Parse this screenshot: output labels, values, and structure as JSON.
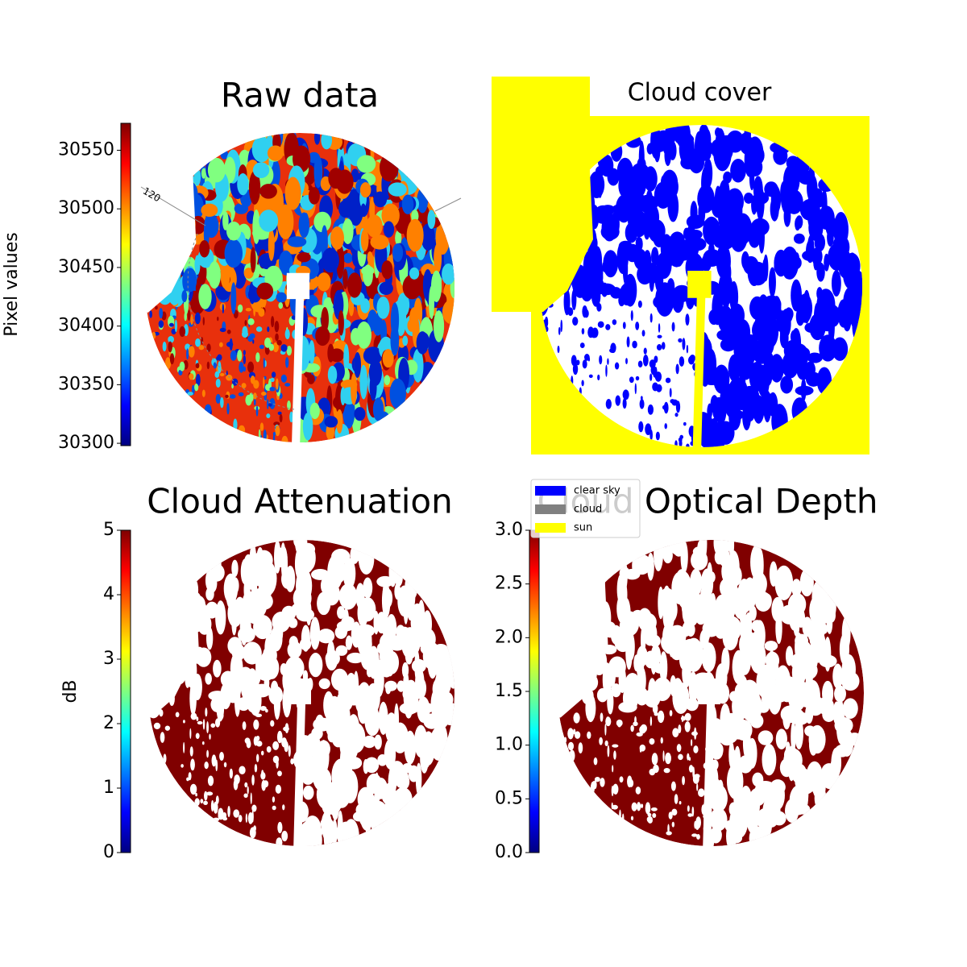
{
  "chart_data": [
    {
      "type": "image",
      "title": "Raw data",
      "colormap": "jet",
      "colorbar_label": "Pixel values",
      "ylim": [
        30298,
        30573
      ],
      "yticks": [
        30300,
        30350,
        30400,
        30450,
        30500,
        30550
      ],
      "annotations": [
        "120"
      ]
    },
    {
      "type": "image",
      "title": "Cloud cover",
      "background": "#ffff00",
      "legend": {
        "categories": [
          "clear sky",
          "cloud",
          "sun"
        ],
        "colors": [
          "#0000ff",
          "#808080",
          "#ffff00"
        ]
      }
    },
    {
      "type": "image",
      "title": "Cloud Attenuation",
      "colormap": "jet",
      "colorbar_label": "dB",
      "ylim": [
        0,
        5
      ],
      "yticks": [
        0,
        1,
        2,
        3,
        4,
        5
      ]
    },
    {
      "type": "image",
      "title": "Cloud Optical Depth",
      "colormap": "jet",
      "ylim": [
        0,
        3
      ],
      "yticks": [
        {
          "value": 0,
          "label": "0.0"
        },
        0.5,
        {
          "value": 1,
          "label": "1.0"
        },
        1.5,
        {
          "value": 2,
          "label": "2.0"
        },
        2.5,
        {
          "value": 3,
          "label": "3.0"
        }
      ]
    }
  ]
}
